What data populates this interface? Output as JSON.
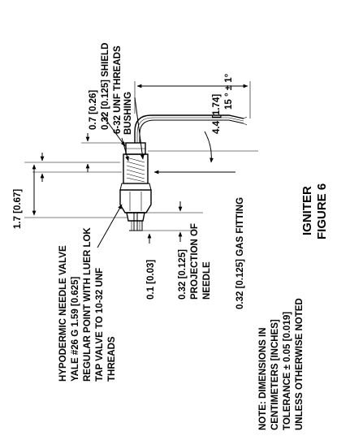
{
  "figure": {
    "title": "IGNITER",
    "number": "FIGURE 6"
  },
  "labels": {
    "shield_offset": "0.7 [0.26]",
    "shield": "0.32 [0.125] SHIELD",
    "threads": "6-32 UNF THREADS",
    "bushing": "BUSHING",
    "length": "4.4 [1.74]",
    "angle": "15 ° ± 1°",
    "overall": "1.7 [0.67]",
    "needle_valve": [
      "HYPODERMIC NEEDLE VALVE",
      "YALE  #26 G  1.59 [0.625]",
      "REGULAR POINT WITH  LUER LOK",
      "TAP VALVE TO 10-32 UNF",
      "THREADS"
    ],
    "tip": "0.1 [0.03]",
    "projection": [
      "0.32 [0.125]",
      "PROJECTION OF",
      "NEEDLE"
    ],
    "gas_fitting": "0.32  [0.125] GAS FITTING",
    "note": [
      "NOTE: DIMENSIONS IN",
      "CENTIMETERS [INCHES]",
      "TOLERANCE ± 0.05 [0.019]",
      "UNLESS OTHERWISE NOTED"
    ]
  }
}
